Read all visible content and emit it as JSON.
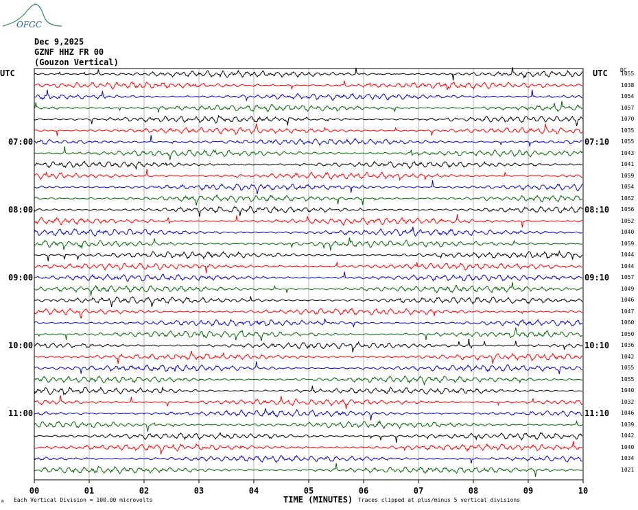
{
  "header": {
    "logo_text": "OFGC",
    "date": "Dec 9,2025",
    "station": "GZNF HHZ FR 00",
    "location": "(Gouzon Vertical)"
  },
  "labels": {
    "utc_left": "UTC",
    "utc_right": "UTC",
    "dc": "DC"
  },
  "footer": {
    "division": "Each Vertical Division =  100.00 microvolts",
    "x_title": "TIME (MINUTES)",
    "clipped": "Traces clipped at plus/minus 5 vertical divisions",
    "tiny_mark": "m"
  },
  "colors": {
    "cycle": [
      "#000000",
      "#ff0000",
      "#0000cc",
      "#006600"
    ],
    "grid": "#808080"
  },
  "chart_data": {
    "type": "line",
    "title": "",
    "x_ticks": [
      "00",
      "01",
      "02",
      "03",
      "04",
      "05",
      "06",
      "07",
      "08",
      "09",
      "10"
    ],
    "xlim": [
      0,
      10
    ],
    "left_time_labels": [
      {
        "row": 6,
        "label": "07:00"
      },
      {
        "row": 12,
        "label": "08:00"
      },
      {
        "row": 18,
        "label": "09:00"
      },
      {
        "row": 24,
        "label": "10:00"
      },
      {
        "row": 30,
        "label": "11:00"
      }
    ],
    "right_time_labels": [
      {
        "row": 6,
        "label": "07:10"
      },
      {
        "row": 12,
        "label": "08:10"
      },
      {
        "row": 18,
        "label": "09:10"
      },
      {
        "row": 24,
        "label": "10:10"
      },
      {
        "row": 30,
        "label": "11:10"
      }
    ],
    "trace_dc_values": [
      "1055",
      "1038",
      "1054",
      "1057",
      "1070",
      "1035",
      "1055",
      "1043",
      "1041",
      "1059",
      "1054",
      "1062",
      "1056",
      "1052",
      "1040",
      "1059",
      "1044",
      "1044",
      "1057",
      "1049",
      "1046",
      "1047",
      "1060",
      "1050",
      "1036",
      "1042",
      "1055",
      "1055",
      "1040",
      "1032",
      "1046",
      "1039",
      "1042",
      "1040",
      "1034",
      "1021"
    ]
  }
}
